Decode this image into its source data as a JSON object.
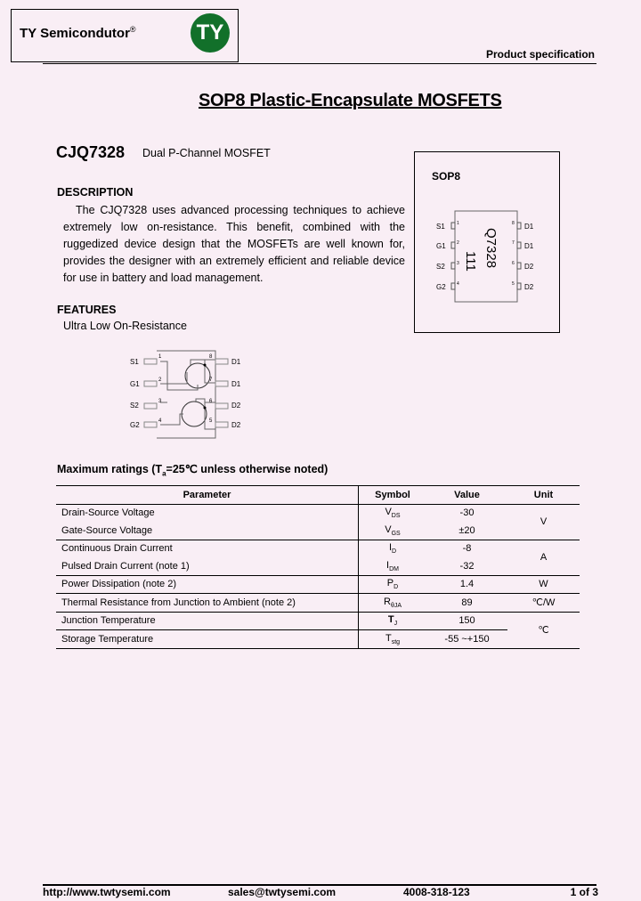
{
  "header": {
    "company": "TY Semicondutor",
    "registered_mark": "®",
    "logo_letters": "TY",
    "logo_color": "#12702a",
    "doc_type": "Product specification"
  },
  "title": "SOP8 Plastic-Encapsulate MOSFETS",
  "part": {
    "number": "CJQ7328",
    "subtitle": "Dual P-Channel MOSFET"
  },
  "description": {
    "heading": "DESCRIPTION",
    "text": "The CJQ7328 uses advanced processing techniques to achieve extremely low on-resistance. This benefit, combined with the ruggedized device design that the MOSFETs are well known for, provides the designer with an extremely efficient and reliable device for use in battery and load management."
  },
  "features": {
    "heading": "FEATURES",
    "items": [
      "Ultra Low On-Resistance"
    ]
  },
  "package": {
    "title": "SOP8",
    "marking_line1": "Q7328",
    "marking_line2": "111",
    "left_pins": [
      {
        "label": "S1",
        "num": "1"
      },
      {
        "label": "G1",
        "num": "2"
      },
      {
        "label": "S2",
        "num": "3"
      },
      {
        "label": "G2",
        "num": "4"
      }
    ],
    "right_pins": [
      {
        "label": "D1",
        "num": "8"
      },
      {
        "label": "D1",
        "num": "7"
      },
      {
        "label": "D2",
        "num": "6"
      },
      {
        "label": "D2",
        "num": "5"
      }
    ]
  },
  "schematic": {
    "left_pins": [
      {
        "label": "S1",
        "num": "1"
      },
      {
        "label": "G1",
        "num": "2"
      },
      {
        "label": "S2",
        "num": "3"
      },
      {
        "label": "G2",
        "num": "4"
      }
    ],
    "right_pins": [
      {
        "label": "D1",
        "num": "8"
      },
      {
        "label": "D1",
        "num": "7"
      },
      {
        "label": "D2",
        "num": "6"
      },
      {
        "label": "D2",
        "num": "5"
      }
    ]
  },
  "ratings": {
    "heading_prefix": "Maximum ratings (T",
    "heading_sub": "a",
    "heading_suffix": "=25℃ unless otherwise noted)",
    "columns": [
      "Parameter",
      "Symbol",
      "Value",
      "Unit"
    ],
    "rows": [
      {
        "param": "Drain-Source Voltage",
        "sym": "V",
        "sym_sub": "DS",
        "value": "-30",
        "unit": "V"
      },
      {
        "param": "Gate-Source Voltage",
        "sym": "V",
        "sym_sub": "GS",
        "value": "±20"
      },
      {
        "param": "Continuous Drain Current",
        "sym": "I",
        "sym_sub": "D",
        "value": "-8",
        "unit": "A"
      },
      {
        "param": "Pulsed Drain Current (note 1)",
        "sym": "I",
        "sym_sub": "DM",
        "value": "-32"
      },
      {
        "param": "Power Dissipation (note 2)",
        "sym": "P",
        "sym_sub": "D",
        "value": "1.4",
        "unit": "W"
      },
      {
        "param": "Thermal Resistance from Junction to Ambient (note 2)",
        "sym": "R",
        "sym_sub": "θJA",
        "value": "89",
        "unit": "℃/W"
      },
      {
        "param": "Junction Temperature",
        "sym": "T",
        "sym_sub": "J",
        "value": "150",
        "unit": "℃"
      },
      {
        "param": "Storage Temperature",
        "sym": "T",
        "sym_sub": "stg",
        "value": "-55 ~+150"
      }
    ]
  },
  "footer": {
    "url": "http://www.twtysemi.com",
    "email": "sales@twtysemi.com",
    "phone": "4008-318-123",
    "page": "1 of 3"
  }
}
